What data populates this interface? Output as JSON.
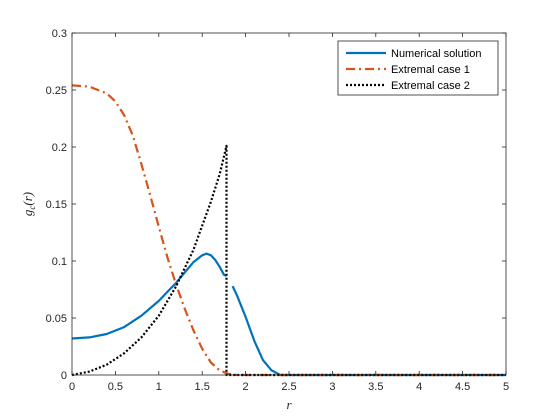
{
  "chart_data": {
    "type": "line",
    "xlabel": "r",
    "ylabel": "g_c(r)",
    "xlim": [
      0,
      5
    ],
    "ylim": [
      0,
      0.3
    ],
    "x_ticks": [
      "0",
      "0.5",
      "1",
      "1.5",
      "2",
      "2.5",
      "3",
      "3.5",
      "4",
      "4.5",
      "5"
    ],
    "y_ticks": [
      "0",
      "0.05",
      "0.1",
      "0.15",
      "0.2",
      "0.25",
      "0.3"
    ],
    "grid": false,
    "legend_position": "top-right",
    "series": [
      {
        "name": "Numerical solution",
        "color": "#0072BD",
        "style": "solid",
        "points": [
          [
            0,
            0.032
          ],
          [
            0.2,
            0.033
          ],
          [
            0.4,
            0.036
          ],
          [
            0.6,
            0.042
          ],
          [
            0.8,
            0.052
          ],
          [
            1.0,
            0.065
          ],
          [
            1.1,
            0.073
          ],
          [
            1.2,
            0.081
          ],
          [
            1.3,
            0.09
          ],
          [
            1.4,
            0.099
          ],
          [
            1.5,
            0.105
          ],
          [
            1.55,
            0.1065
          ],
          [
            1.6,
            0.105
          ],
          [
            1.65,
            0.101
          ],
          [
            1.7,
            0.095
          ],
          [
            1.75,
            0.088
          ],
          [
            1.78,
            0.087
          ],
          null,
          [
            1.85,
            0.078
          ],
          [
            1.9,
            0.07
          ],
          [
            2.0,
            0.051
          ],
          [
            2.1,
            0.03
          ],
          [
            2.2,
            0.013
          ],
          [
            2.3,
            0.004
          ],
          [
            2.35,
            0.002
          ],
          [
            2.4,
            0.0
          ],
          [
            5.0,
            0.0
          ]
        ]
      },
      {
        "name": "Extremal case 1",
        "color": "#D95319",
        "style": "dashdot",
        "points": [
          [
            0,
            0.254
          ],
          [
            0.2,
            0.253
          ],
          [
            0.4,
            0.247
          ],
          [
            0.5,
            0.24
          ],
          [
            0.6,
            0.228
          ],
          [
            0.7,
            0.21
          ],
          [
            0.8,
            0.185
          ],
          [
            0.9,
            0.158
          ],
          [
            1.0,
            0.13
          ],
          [
            1.1,
            0.103
          ],
          [
            1.2,
            0.079
          ],
          [
            1.3,
            0.058
          ],
          [
            1.4,
            0.039
          ],
          [
            1.5,
            0.023
          ],
          [
            1.6,
            0.011
          ],
          [
            1.7,
            0.004
          ],
          [
            1.8,
            0.001
          ],
          [
            1.9,
            0.0
          ],
          [
            5.0,
            0.0
          ]
        ]
      },
      {
        "name": "Extremal case 2",
        "color": "#000000",
        "style": "dotted",
        "points": [
          [
            0,
            0
          ],
          [
            0.2,
            0.003
          ],
          [
            0.4,
            0.009
          ],
          [
            0.6,
            0.019
          ],
          [
            0.8,
            0.033
          ],
          [
            1.0,
            0.052
          ],
          [
            1.2,
            0.078
          ],
          [
            1.4,
            0.11
          ],
          [
            1.6,
            0.152
          ],
          [
            1.7,
            0.176
          ],
          [
            1.78,
            0.201
          ],
          [
            1.78,
            0.0
          ],
          [
            5.0,
            0.0
          ]
        ]
      }
    ]
  }
}
